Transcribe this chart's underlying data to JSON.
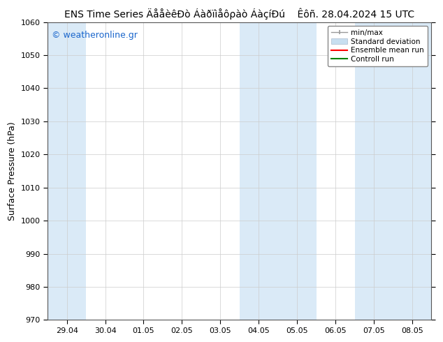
{
  "title": "ENS Time Series ÄååèêÐò Áàðïìåôρàò ÁàçíÐú    Êôñ. 28.04.2024 15 UTC",
  "ylabel": "Surface Pressure (hPa)",
  "ylim": [
    970,
    1060
  ],
  "yticks": [
    970,
    980,
    990,
    1000,
    1010,
    1020,
    1030,
    1040,
    1050,
    1060
  ],
  "xtick_labels": [
    "29.04",
    "30.04",
    "01.05",
    "02.05",
    "03.05",
    "04.05",
    "05.05",
    "06.05",
    "07.05",
    "08.05"
  ],
  "watermark": "© weatheronline.gr",
  "bg_color": "#ffffff",
  "plot_bg_color": "#ffffff",
  "shaded_color": "#daeaf7",
  "shaded_regions_idx": [
    0,
    5,
    6,
    8,
    9
  ],
  "legend_labels": [
    "min/max",
    "Standard deviation",
    "Ensemble mean run",
    "Controll run"
  ],
  "legend_colors": [
    "#aaaaaa",
    "#c8dff0",
    "#ff0000",
    "#008000"
  ],
  "title_fontsize": 10,
  "tick_fontsize": 8,
  "ylabel_fontsize": 9,
  "watermark_color": "#1a66cc",
  "watermark_fontsize": 9
}
